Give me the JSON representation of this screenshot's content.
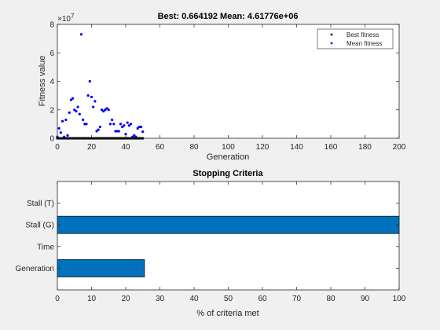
{
  "chart_data": [
    {
      "type": "scatter",
      "title": "Best: 0.664192 Mean: 4.61776e+06",
      "xlabel": "Generation",
      "ylabel": "Fitness value",
      "y_exponent": "×10",
      "y_exponent_power": "7",
      "xlim": [
        0,
        200
      ],
      "ylim": [
        0,
        80000000
      ],
      "x_ticks": [
        "0",
        "20",
        "40",
        "60",
        "80",
        "100",
        "120",
        "140",
        "160",
        "180",
        "200"
      ],
      "x_tick_values": [
        0,
        20,
        40,
        60,
        80,
        100,
        120,
        140,
        160,
        180,
        200
      ],
      "y_ticks": [
        "0",
        "2",
        "4",
        "6",
        "8"
      ],
      "y_tick_values": [
        0,
        20000000,
        40000000,
        60000000,
        80000000
      ],
      "legend_placement": "top-right",
      "series": [
        {
          "name": "Best fitness",
          "color": "#000000",
          "x": [
            0,
            1,
            2,
            3,
            4,
            5,
            6,
            7,
            8,
            9,
            10,
            11,
            12,
            13,
            14,
            15,
            16,
            17,
            18,
            19,
            20,
            21,
            22,
            23,
            24,
            25,
            26,
            27,
            28,
            29,
            30,
            31,
            32,
            33,
            34,
            35,
            36,
            37,
            38,
            39,
            40,
            41,
            42,
            43,
            44,
            45,
            46,
            47,
            48,
            49,
            50
          ],
          "y": [
            0.66,
            0.66,
            0.66,
            0.66,
            0.66,
            0.66,
            0.66,
            0.66,
            0.66,
            0.66,
            0.66,
            0.66,
            0.66,
            0.66,
            0.66,
            0.66,
            0.66,
            0.66,
            0.66,
            0.66,
            0.66,
            0.66,
            0.66,
            0.66,
            0.66,
            0.66,
            0.66,
            0.66,
            0.66,
            0.66,
            0.66,
            0.66,
            0.66,
            0.66,
            0.66,
            0.66,
            0.66,
            0.66,
            0.66,
            0.66,
            0.66,
            0.66,
            0.66,
            0.66,
            0.66,
            0.66,
            0.66,
            0.66,
            0.66,
            0.66,
            0.664192
          ]
        },
        {
          "name": "Mean fitness",
          "color": "#0000ff",
          "x": [
            0,
            1,
            2,
            3,
            4,
            5,
            6,
            7,
            8,
            9,
            10,
            11,
            12,
            13,
            14,
            15,
            16,
            17,
            18,
            19,
            20,
            21,
            22,
            23,
            24,
            25,
            26,
            27,
            28,
            29,
            30,
            31,
            32,
            33,
            34,
            35,
            36,
            37,
            38,
            39,
            40,
            41,
            42,
            43,
            44,
            45,
            46,
            47,
            48,
            49,
            50
          ],
          "y": [
            1000000,
            7000000,
            4000000,
            12000000,
            1000000,
            13000000,
            2000000,
            18000000,
            27000000,
            28000000,
            20000000,
            19000000,
            22000000,
            17000000,
            73000000,
            13000000,
            10000000,
            10000000,
            30000000,
            40000000,
            29000000,
            22000000,
            26000000,
            5000000,
            6000000,
            8000000,
            20000000,
            19000000,
            20000000,
            21000000,
            20000000,
            10000000,
            13000000,
            10000000,
            5000000,
            5000000,
            5000000,
            10000000,
            8000000,
            9000000,
            3000000,
            11000000,
            9000000,
            10000000,
            1000000,
            2000000,
            1000000,
            7000000,
            8000000,
            8000000,
            4617760
          ]
        }
      ]
    },
    {
      "type": "bar",
      "orientation": "horizontal",
      "title": "Stopping Criteria",
      "xlabel": "% of criteria met",
      "ylabel": "",
      "xlim": [
        0,
        100
      ],
      "x_ticks": [
        "0",
        "10",
        "20",
        "30",
        "40",
        "50",
        "60",
        "70",
        "80",
        "90",
        "100"
      ],
      "x_tick_values": [
        0,
        10,
        20,
        30,
        40,
        50,
        60,
        70,
        80,
        90,
        100
      ],
      "categories": [
        "Stall (T)",
        "Stall (G)",
        "Time",
        "Generation"
      ],
      "values": [
        0,
        100,
        0,
        25.5
      ],
      "bar_color": "#0072bd"
    }
  ]
}
